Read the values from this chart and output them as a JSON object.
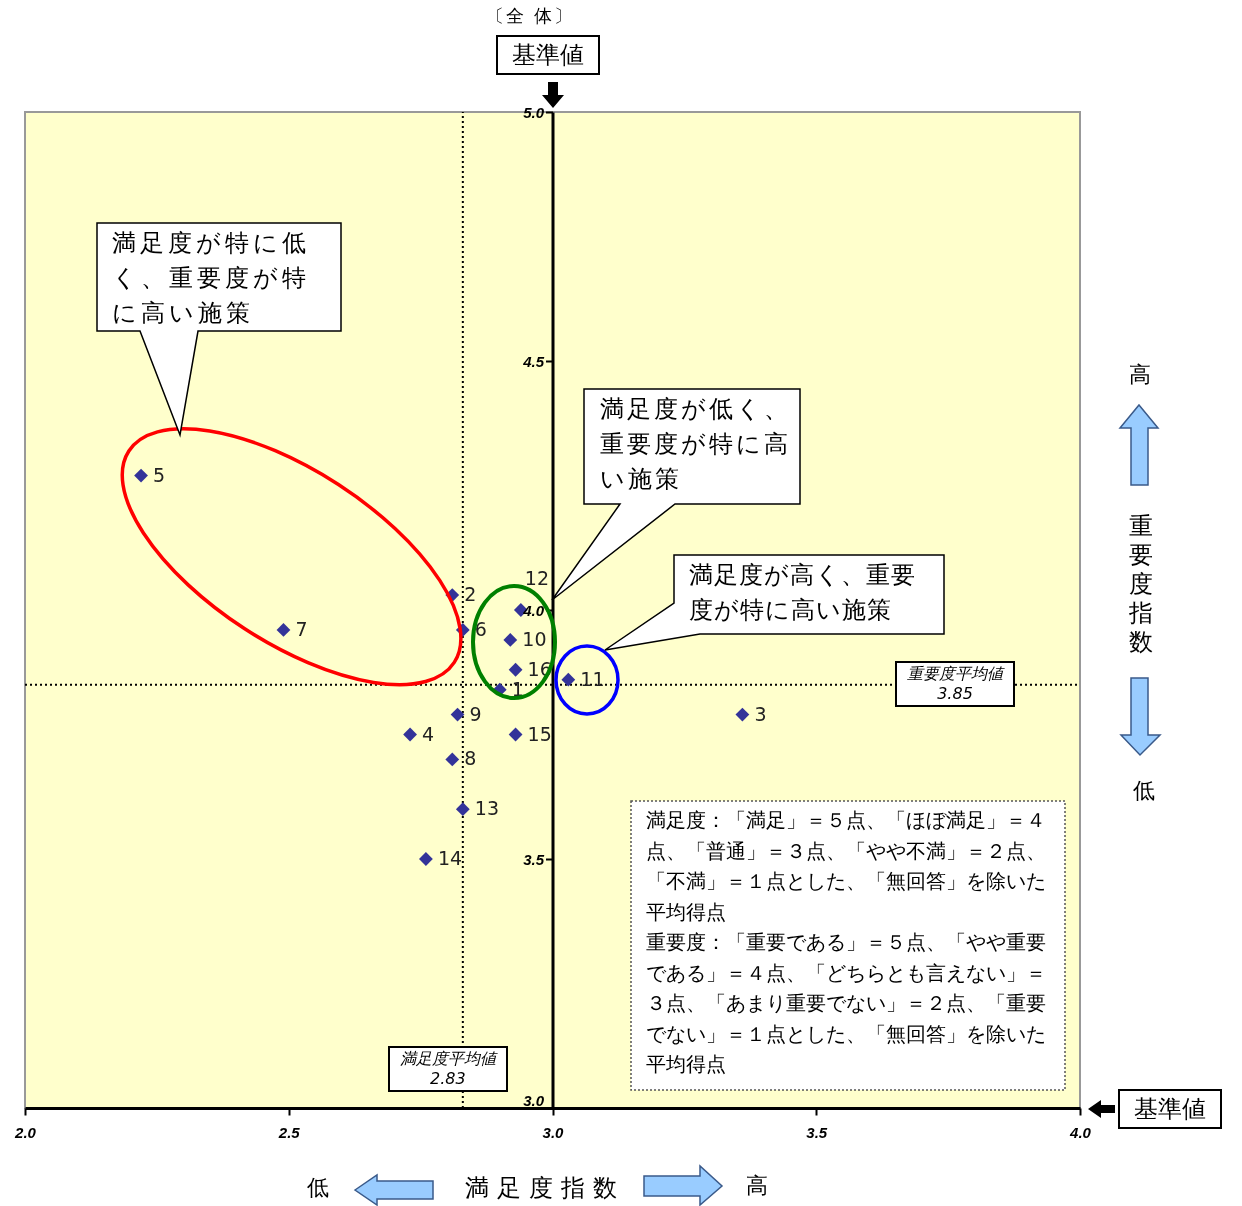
{
  "chart_data": {
    "type": "scatter",
    "title": "〔全 体〕",
    "xlabel": "満足度指数",
    "ylabel": "重要度指数",
    "x": [
      2.9,
      2.81,
      3.36,
      2.73,
      2.22,
      2.83,
      2.49,
      2.81,
      2.82,
      2.92,
      3.03,
      2.94,
      2.83,
      2.76,
      2.93,
      2.93
    ],
    "series": [
      {
        "color": "#333399",
        "values": [
          3.84,
          4.03,
          3.79,
          3.75,
          4.27,
          3.96,
          3.96,
          3.7,
          3.79,
          3.94,
          3.86,
          4.0,
          3.6,
          3.5,
          3.75,
          3.88
        ]
      }
    ],
    "xlim": [
      2,
      4
    ],
    "xticks": [
      {
        "value": 2,
        "label": "2.0"
      },
      {
        "value": 2.5,
        "label": "2.5"
      },
      {
        "value": 3,
        "label": "3.0"
      },
      {
        "value": 3.5,
        "label": "3.5"
      },
      {
        "value": 4,
        "label": "4.0"
      }
    ],
    "ylim": [
      3,
      5
    ],
    "yticks": [
      {
        "value": 3,
        "label": "3.0"
      },
      {
        "value": 3.5,
        "label": "3.5"
      },
      {
        "value": 4,
        "label": "4.0"
      },
      {
        "value": 4.5,
        "label": "4.5"
      },
      {
        "value": 5,
        "label": "5.0"
      }
    ],
    "marker": "diamond",
    "grid": false,
    "ref_lines": [
      {
        "axis": "x",
        "value": 2.83,
        "label": "満足度平均値\n2.83",
        "color": "#000000",
        "line_style": "dotted"
      },
      {
        "axis": "y",
        "value": 3.85,
        "label": "重要度平均値\n3.85",
        "color": "#000000",
        "line_style": "dotted"
      }
    ],
    "annotations": [
      "高",
      "低",
      "低",
      "高",
      "満足度が特に低く、重要度が特に高い施策",
      "満足度が低く、重要度が特に高い施策",
      "満足度が高く、重要度が特に高い施策",
      "満足度：「満足」＝５点、「ほぼ満足」＝４点、「普通」＝３点、「やや不満」＝２点、「不満」＝１点とした、「無回答」を除いた平均得点",
      "重要度：「重要である」＝５点、「やや重要である」＝４点、「どちらとも言えない」＝３点、「あまり重要でない」＝２点、「重要でない」＝１点とした、「無回答」を除いた平均得点",
      "基準値",
      "基準値",
      {
        "text": "1",
        "x": 2.9,
        "y": 3.84
      },
      {
        "text": "2",
        "x": 2.81,
        "y": 4.03
      },
      {
        "text": "3",
        "x": 3.36,
        "y": 3.79
      },
      {
        "text": "4",
        "x": 2.73,
        "y": 3.75
      },
      {
        "text": "5",
        "x": 2.22,
        "y": 4.27
      },
      {
        "text": "6",
        "x": 2.83,
        "y": 3.96
      },
      {
        "text": "7",
        "x": 2.49,
        "y": 3.96
      },
      {
        "text": "8",
        "x": 2.81,
        "y": 3.7
      },
      {
        "text": "9",
        "x": 2.82,
        "y": 3.79
      },
      {
        "text": "10",
        "x": 2.92,
        "y": 3.94
      },
      {
        "text": "11",
        "x": 3.03,
        "y": 3.86
      },
      {
        "text": "12",
        "x": 2.94,
        "y": 4.0
      },
      {
        "text": "13",
        "x": 2.83,
        "y": 3.6
      },
      {
        "text": "14",
        "x": 2.76,
        "y": 3.5
      },
      {
        "text": "15",
        "x": 2.93,
        "y": 3.75
      },
      {
        "text": "16",
        "x": 2.93,
        "y": 3.88
      }
    ]
  }
}
